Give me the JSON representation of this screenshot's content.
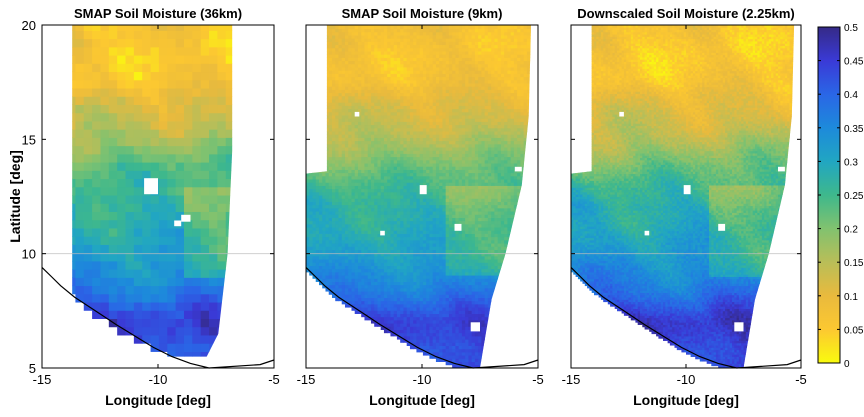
{
  "chart_data": {
    "type": "heatmap",
    "shared": {
      "xlabel": "Longitude [deg]",
      "ylabel": "Latitude [deg]",
      "xlim": [
        -15,
        -5
      ],
      "ylim": [
        5,
        20
      ],
      "xticks": [
        -15,
        -10,
        -5
      ],
      "xtick_labels": [
        "-15",
        "-10",
        "-5"
      ],
      "yticks": [
        5,
        10,
        15,
        20
      ],
      "ytick_labels": [
        "5",
        "10",
        "15",
        "20"
      ],
      "grid": "horizontal line at latitude 10",
      "variable": "soil moisture",
      "colormap": "parula (reversed: yellow = low, dark blue = high)"
    },
    "colorbar": {
      "ticks": [
        0,
        0.05,
        0.1,
        0.15,
        0.2,
        0.25,
        0.3,
        0.35,
        0.4,
        0.45,
        0.5
      ],
      "tick_labels": [
        "0",
        "0.05",
        "0.1",
        "0.15",
        "0.2",
        "0.25",
        "0.3",
        "0.35",
        "0.4",
        "0.45",
        "0.5"
      ],
      "range": [
        0,
        0.5
      ]
    },
    "panels": [
      {
        "title": "SMAP Soil Moisture (36km)",
        "resolution_deg": 0.36,
        "latitude_bands": [
          {
            "lat_range": [
              15,
              20
            ],
            "soil_moisture": 0.06
          },
          {
            "lat_range": [
              13,
              15
            ],
            "soil_moisture": 0.22
          },
          {
            "lat_range": [
              11,
              13
            ],
            "soil_moisture": 0.28
          },
          {
            "lat_range": [
              9,
              11
            ],
            "soil_moisture": 0.3
          },
          {
            "lat_range": [
              5,
              9
            ],
            "soil_moisture": 0.44
          }
        ]
      },
      {
        "title": "SMAP Soil Moisture (9km)",
        "resolution_deg": 0.09,
        "latitude_bands": [
          {
            "lat_range": [
              15,
              20
            ],
            "soil_moisture": 0.07
          },
          {
            "lat_range": [
              13,
              15
            ],
            "soil_moisture": 0.2
          },
          {
            "lat_range": [
              11,
              13
            ],
            "soil_moisture": 0.28
          },
          {
            "lat_range": [
              9,
              11
            ],
            "soil_moisture": 0.3
          },
          {
            "lat_range": [
              5,
              9
            ],
            "soil_moisture": 0.44
          }
        ]
      },
      {
        "title": "Downscaled Soil Moisture (2.25km)",
        "resolution_deg": 0.0225,
        "latitude_bands": [
          {
            "lat_range": [
              15,
              20
            ],
            "soil_moisture": 0.06
          },
          {
            "lat_range": [
              13,
              15
            ],
            "soil_moisture": 0.2
          },
          {
            "lat_range": [
              11,
              13
            ],
            "soil_moisture": 0.29
          },
          {
            "lat_range": [
              9,
              11
            ],
            "soil_moisture": 0.31
          },
          {
            "lat_range": [
              5,
              9
            ],
            "soil_moisture": 0.45
          }
        ]
      }
    ]
  },
  "colors": {
    "palette": [
      "#f9fb0e",
      "#fcc831",
      "#e9ba3d",
      "#b9be58",
      "#81c26f",
      "#3eb88c",
      "#21a6c2",
      "#1d8adb",
      "#2a66e6",
      "#3a3ad6",
      "#352a87"
    ]
  }
}
